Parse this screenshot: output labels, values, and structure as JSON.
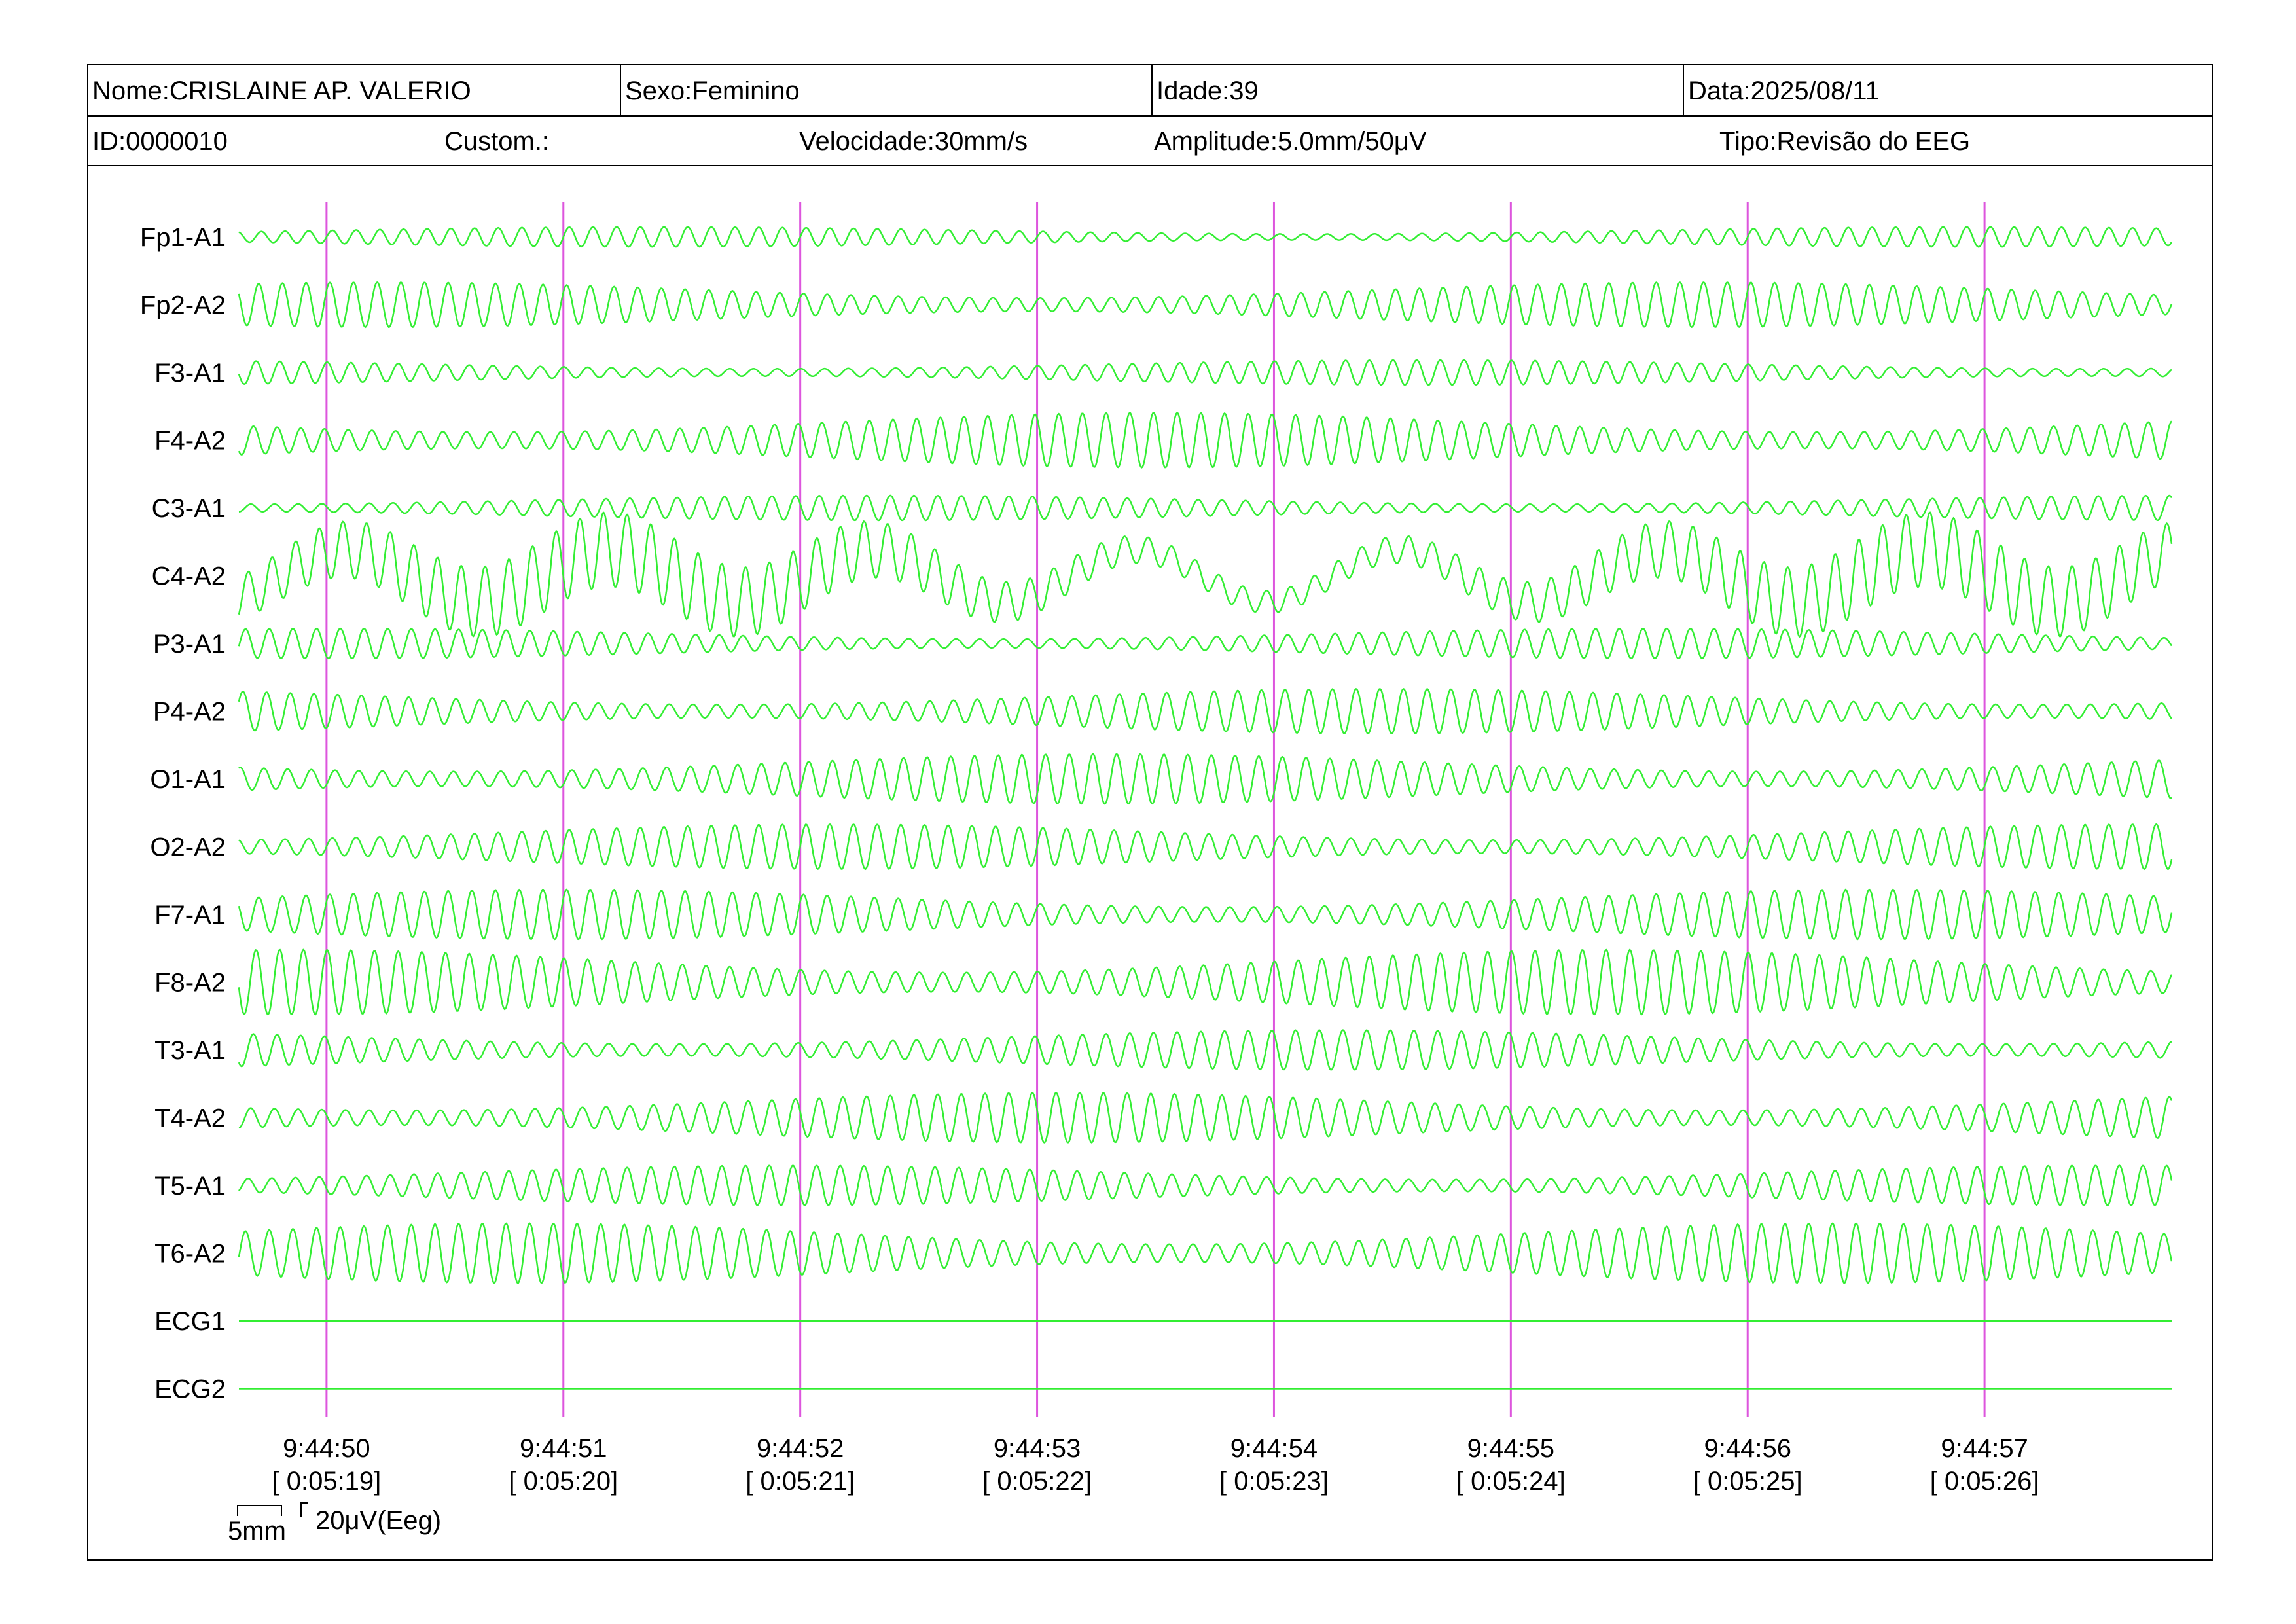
{
  "header": {
    "nome": "Nome:CRISLAINE AP. VALERIO",
    "sexo": "Sexo:Feminino",
    "idade": "Idade:39",
    "data": "Data:2025/08/11",
    "id": "ID:0000010",
    "custom": "Custom.:",
    "velocidade": "Velocidade:30mm/s",
    "amplitude": "Amplitude:5.0mm/50μV",
    "tipo": "Tipo:Revisão do EEG"
  },
  "scale": {
    "time_label": "5mm",
    "amp_label": "20μV(Eeg)"
  },
  "colors": {
    "trace": "#33ee33",
    "marker": "#dd55dd",
    "text": "#000000"
  },
  "chart_data": {
    "type": "line",
    "title": "",
    "xlabel": "",
    "ylabel": "",
    "channels": [
      "Fp1-A1",
      "Fp2-A2",
      "F3-A1",
      "F4-A2",
      "C3-A1",
      "C4-A2",
      "P3-A1",
      "P4-A2",
      "O1-A1",
      "O2-A2",
      "F7-A1",
      "F8-A2",
      "T3-A1",
      "T4-A2",
      "T5-A1",
      "T6-A2",
      "ECG1",
      "ECG2"
    ],
    "x_ticks": [
      {
        "time": "9:44:50",
        "elapsed": "[ 0:05:19]"
      },
      {
        "time": "9:44:51",
        "elapsed": "[ 0:05:20]"
      },
      {
        "time": "9:44:52",
        "elapsed": "[ 0:05:21]"
      },
      {
        "time": "9:44:53",
        "elapsed": "[ 0:05:22]"
      },
      {
        "time": "9:44:54",
        "elapsed": "[ 0:05:23]"
      },
      {
        "time": "9:44:55",
        "elapsed": "[ 0:05:24]"
      },
      {
        "time": "9:44:56",
        "elapsed": "[ 0:05:25]"
      },
      {
        "time": "9:44:57",
        "elapsed": "[ 0:05:26]"
      }
    ],
    "xlim_seconds": [
      -0.37,
      7.79
    ],
    "approx_frequency_hz": 10,
    "approx_amplitude_uV": [
      8,
      18,
      10,
      22,
      10,
      30,
      12,
      18,
      20,
      18,
      20,
      26,
      16,
      20,
      16,
      24,
      0,
      0
    ],
    "grid": false,
    "legend": "none"
  }
}
